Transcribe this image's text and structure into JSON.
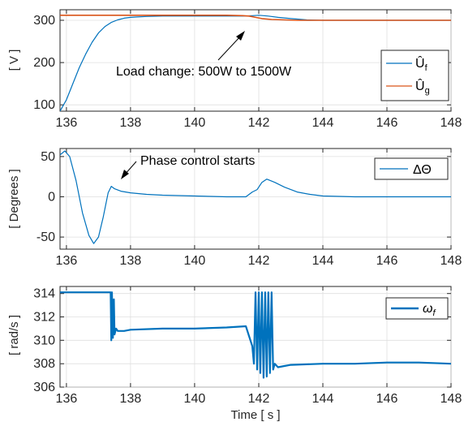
{
  "chart_data": [
    {
      "type": "line",
      "title": "",
      "xlabel": "",
      "ylabel": "[ V ]",
      "xlim": [
        135.8,
        148
      ],
      "ylim": [
        85,
        325
      ],
      "xticks": [
        136,
        138,
        140,
        142,
        144,
        146,
        148
      ],
      "xtick_labels": [
        "136",
        "138",
        "140",
        "142",
        "144",
        "146",
        "148"
      ],
      "yticks": [
        100,
        200,
        300
      ],
      "ytick_labels": [
        "100",
        "200",
        "300"
      ],
      "grid": true,
      "legend_position": "right",
      "series": [
        {
          "name": "Û",
          "sub": "f",
          "color": "#0072BD",
          "x": [
            135.8,
            136.0,
            136.2,
            136.4,
            136.6,
            136.8,
            137.0,
            137.2,
            137.4,
            137.6,
            137.8,
            138.0,
            138.2,
            138.5,
            139.0,
            140.0,
            141.0,
            141.5,
            141.8,
            142.0,
            142.3,
            142.6,
            143.0,
            143.5,
            144.0,
            145.0,
            146.0,
            147.0,
            148.0
          ],
          "y": [
            85,
            112,
            150,
            188,
            220,
            248,
            270,
            285,
            295,
            301,
            305,
            307,
            308,
            309,
            310,
            310,
            310,
            310,
            311,
            312,
            310,
            307,
            304,
            301,
            300,
            300,
            300,
            300,
            300
          ]
        },
        {
          "name": "Û",
          "sub": "g",
          "color": "#D95319",
          "x": [
            135.8,
            137.0,
            138.0,
            139.0,
            140.0,
            141.0,
            141.5,
            141.7,
            141.9,
            142.1,
            142.4,
            142.8,
            143.2,
            144.0,
            145.0,
            146.0,
            147.0,
            148.0
          ],
          "y": [
            312,
            312,
            312,
            312,
            312,
            312,
            311,
            310,
            307,
            304,
            302,
            301,
            300,
            300,
            300,
            300,
            300,
            300
          ]
        }
      ],
      "annotations": [
        {
          "text": "Load change: 500W to 1500W",
          "arrow_to": [
            141.7,
            311
          ]
        }
      ]
    },
    {
      "type": "line",
      "title": "",
      "xlabel": "",
      "ylabel": "[ Degrees ]",
      "xlim": [
        135.8,
        148
      ],
      "ylim": [
        -65,
        60
      ],
      "xticks": [
        136,
        138,
        140,
        142,
        144,
        146,
        148
      ],
      "xtick_labels": [
        "136",
        "138",
        "140",
        "142",
        "144",
        "146",
        "148"
      ],
      "yticks": [
        -50,
        0,
        50
      ],
      "ytick_labels": [
        "-50",
        "0",
        "50"
      ],
      "grid": true,
      "legend_position": "top-right",
      "series": [
        {
          "name": "ΔΘ",
          "color": "#0072BD",
          "x": [
            135.8,
            135.95,
            136.1,
            136.3,
            136.5,
            136.7,
            136.85,
            137.0,
            137.15,
            137.3,
            137.4,
            137.5,
            137.7,
            138.0,
            138.5,
            139.0,
            140.0,
            141.0,
            141.6,
            141.8,
            141.95,
            142.1,
            142.25,
            142.5,
            142.8,
            143.2,
            143.6,
            144.0,
            145.0,
            146.0,
            147.0,
            148.0
          ],
          "y": [
            52,
            57,
            50,
            20,
            -20,
            -48,
            -58,
            -50,
            -25,
            5,
            13,
            10,
            7,
            5,
            3,
            2,
            1,
            0,
            0,
            6,
            9,
            18,
            22,
            18,
            12,
            6,
            3,
            1,
            0,
            0,
            0,
            0
          ]
        }
      ],
      "annotations": [
        {
          "text": "Phase control starts",
          "arrow_to": [
            137.4,
            13
          ]
        }
      ]
    },
    {
      "type": "line",
      "title": "",
      "xlabel": "Time [ s ]",
      "ylabel": "[ rad/s ]",
      "xlim": [
        135.8,
        148
      ],
      "ylim": [
        306,
        314.6
      ],
      "xticks": [
        136,
        138,
        140,
        142,
        144,
        146,
        148
      ],
      "xtick_labels": [
        "136",
        "138",
        "140",
        "142",
        "144",
        "146",
        "148"
      ],
      "yticks": [
        306,
        308,
        310,
        312,
        314
      ],
      "ytick_labels": [
        "306",
        "308",
        "310",
        "312",
        "314"
      ],
      "grid": true,
      "legend_position": "top-right",
      "series": [
        {
          "name": "ω",
          "sub": "f",
          "color": "#0072BD",
          "x": [
            135.8,
            136.5,
            137.0,
            137.3,
            137.38,
            137.4,
            137.42,
            137.45,
            137.48,
            137.5,
            137.55,
            137.6,
            137.8,
            138.0,
            139.0,
            140.0,
            141.0,
            141.6,
            141.8,
            141.85,
            141.9,
            141.95,
            142.0,
            142.05,
            142.1,
            142.15,
            142.2,
            142.25,
            142.3,
            142.35,
            142.4,
            142.45,
            142.5,
            142.6,
            142.8,
            143.0,
            144.0,
            145.0,
            146.0,
            147.0,
            148.0
          ],
          "y": [
            314.1,
            314.1,
            314.1,
            314.1,
            314.1,
            310.0,
            314.1,
            310.2,
            313.5,
            310.5,
            311.0,
            310.8,
            310.8,
            310.9,
            311.0,
            311.0,
            311.1,
            311.2,
            309.5,
            308.0,
            314.1,
            307.5,
            314.1,
            307.2,
            314.1,
            306.8,
            314.1,
            306.9,
            314.1,
            307.2,
            314.1,
            307.5,
            308.0,
            307.7,
            307.8,
            307.9,
            308.0,
            308.0,
            308.1,
            308.1,
            308.0
          ]
        }
      ],
      "annotations": []
    }
  ]
}
